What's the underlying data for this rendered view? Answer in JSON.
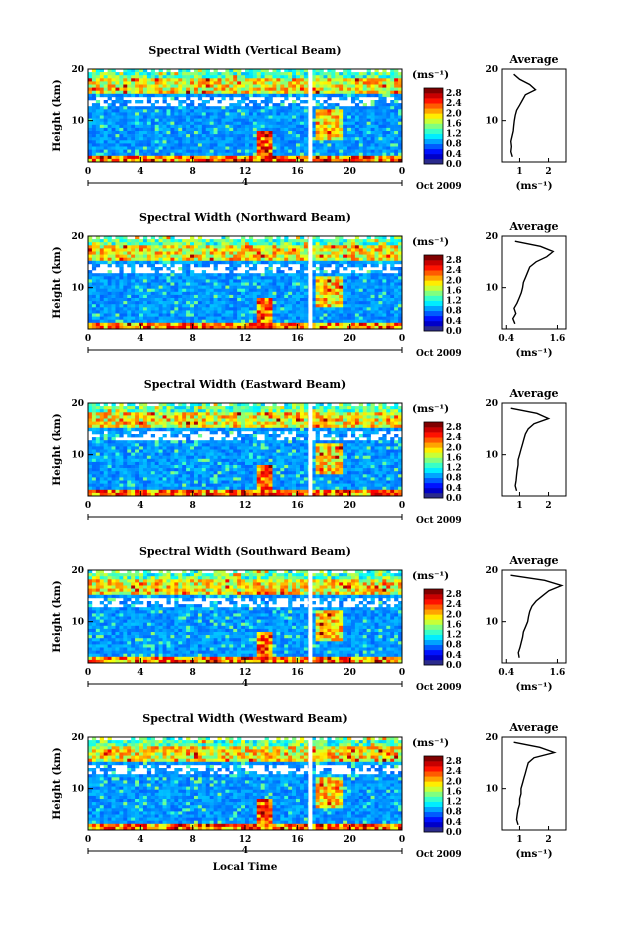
{
  "chart_data": [
    {
      "type": "heatmap",
      "title": "Spectral Width (Vertical Beam)",
      "ylabel": "Height (km)",
      "date_label": "Oct 2009",
      "x_ticks": [
        "0",
        "4",
        "8",
        "12",
        "16",
        "20",
        "0"
      ],
      "xlim": [
        0,
        24
      ],
      "y_ticks": [
        "10",
        "20"
      ],
      "ylim": [
        2,
        20
      ],
      "colorbar_unit": "(ms⁻¹)",
      "colorbar_ticks": [
        "0.0",
        "0.4",
        "0.8",
        "1.2",
        "1.6",
        "2.0",
        "2.4",
        "2.8"
      ],
      "colorbar_range": [
        0.0,
        3.0
      ],
      "secondary_axis_label": "4",
      "avg_panel": {
        "title": "Average",
        "xlabel": "(ms⁻¹)",
        "x_ticks": [
          "1",
          "2"
        ],
        "xlim": [
          0.4,
          2.6
        ],
        "y_ticks": [
          "10",
          "20"
        ],
        "heights": [
          3,
          4,
          5,
          6,
          7,
          8,
          9,
          10,
          11,
          12,
          13,
          14,
          15,
          16,
          17,
          18,
          19
        ],
        "values": [
          0.75,
          0.7,
          0.72,
          0.7,
          0.74,
          0.78,
          0.8,
          0.82,
          0.85,
          0.9,
          1.0,
          1.1,
          1.2,
          1.55,
          1.35,
          1.0,
          0.8
        ]
      }
    },
    {
      "type": "heatmap",
      "title": "Spectral Width (Northward Beam)",
      "ylabel": "Height (km)",
      "date_label": "Oct 2009",
      "x_ticks": [
        "0",
        "4",
        "8",
        "12",
        "16",
        "20",
        "0"
      ],
      "xlim": [
        0,
        24
      ],
      "y_ticks": [
        "10",
        "20"
      ],
      "ylim": [
        2,
        20
      ],
      "colorbar_unit": "(ms⁻¹)",
      "colorbar_ticks": [
        "0.0",
        "0.4",
        "0.8",
        "1.2",
        "1.6",
        "2.0",
        "2.4",
        "2.8"
      ],
      "colorbar_range": [
        0.0,
        3.0
      ],
      "secondary_axis_label": "",
      "avg_panel": {
        "title": "Average",
        "xlabel": "(ms⁻¹)",
        "x_ticks": [
          "0.4",
          "1.6"
        ],
        "xlim": [
          0.3,
          1.8
        ],
        "y_ticks": [
          "10",
          "20"
        ],
        "heights": [
          3,
          4,
          5,
          6,
          7,
          8,
          9,
          10,
          11,
          12,
          13,
          14,
          15,
          16,
          17,
          18,
          19
        ],
        "values": [
          0.6,
          0.55,
          0.62,
          0.58,
          0.65,
          0.7,
          0.75,
          0.78,
          0.8,
          0.85,
          0.9,
          0.95,
          1.1,
          1.35,
          1.5,
          1.2,
          0.6
        ]
      }
    },
    {
      "type": "heatmap",
      "title": "Spectral Width (Eastward Beam)",
      "ylabel": "Height (km)",
      "date_label": "Oct 2009",
      "x_ticks": [
        "0",
        "4",
        "8",
        "12",
        "16",
        "20",
        "0"
      ],
      "xlim": [
        0,
        24
      ],
      "y_ticks": [
        "10",
        "20"
      ],
      "ylim": [
        2,
        20
      ],
      "colorbar_unit": "(ms⁻¹)",
      "colorbar_ticks": [
        "0.0",
        "0.4",
        "0.8",
        "1.2",
        "1.6",
        "2.0",
        "2.4",
        "2.8"
      ],
      "colorbar_range": [
        0.0,
        3.0
      ],
      "secondary_axis_label": "",
      "avg_panel": {
        "title": "Average",
        "xlabel": "",
        "x_ticks": [
          "1",
          "2"
        ],
        "xlim": [
          0.4,
          2.6
        ],
        "y_ticks": [
          "10",
          "20"
        ],
        "heights": [
          3,
          4,
          5,
          6,
          7,
          8,
          9,
          10,
          11,
          12,
          13,
          14,
          15,
          16,
          17,
          18,
          19
        ],
        "values": [
          0.9,
          0.85,
          0.88,
          0.9,
          0.92,
          0.95,
          0.95,
          1.0,
          1.05,
          1.1,
          1.15,
          1.2,
          1.3,
          1.5,
          2.0,
          1.6,
          0.7
        ]
      }
    },
    {
      "type": "heatmap",
      "title": "Spectral Width (Southward Beam)",
      "ylabel": "Height (km)",
      "date_label": "Oct 2009",
      "x_ticks": [
        "0",
        "4",
        "8",
        "12",
        "16",
        "20",
        "0"
      ],
      "xlim": [
        0,
        24
      ],
      "y_ticks": [
        "10",
        "20"
      ],
      "ylim": [
        2,
        20
      ],
      "colorbar_unit": "(ms⁻¹)",
      "colorbar_ticks": [
        "0.0",
        "0.4",
        "0.8",
        "1.2",
        "1.6",
        "2.0",
        "2.4",
        "2.8"
      ],
      "colorbar_range": [
        0.0,
        3.0
      ],
      "secondary_axis_label": "4",
      "avg_panel": {
        "title": "Average",
        "xlabel": "(ms⁻¹)",
        "x_ticks": [
          "0.4",
          "1.6"
        ],
        "xlim": [
          0.3,
          1.8
        ],
        "y_ticks": [
          "10",
          "20"
        ],
        "heights": [
          3,
          4,
          5,
          6,
          7,
          8,
          9,
          10,
          11,
          12,
          13,
          14,
          15,
          16,
          17,
          18,
          19
        ],
        "values": [
          0.7,
          0.68,
          0.72,
          0.75,
          0.78,
          0.8,
          0.85,
          0.9,
          0.92,
          0.95,
          1.0,
          1.1,
          1.25,
          1.4,
          1.7,
          1.3,
          0.5
        ]
      }
    },
    {
      "type": "heatmap",
      "title": "Spectral Width (Westward Beam)",
      "ylabel": "Height (km)",
      "date_label": "Oct 2009",
      "x_ticks": [
        "0",
        "4",
        "8",
        "12",
        "16",
        "20",
        "0"
      ],
      "xlim": [
        0,
        24
      ],
      "y_ticks": [
        "10",
        "20"
      ],
      "ylim": [
        2,
        20
      ],
      "colorbar_unit": "(ms⁻¹)",
      "colorbar_ticks": [
        "0.0",
        "0.4",
        "0.8",
        "1.2",
        "1.6",
        "2.0",
        "2.4",
        "2.8"
      ],
      "colorbar_range": [
        0.0,
        3.0
      ],
      "secondary_axis_label": "4",
      "xlabel": "Local Time",
      "avg_panel": {
        "title": "Average",
        "xlabel": "(ms⁻¹)",
        "x_ticks": [
          "1",
          "2"
        ],
        "xlim": [
          0.4,
          2.6
        ],
        "y_ticks": [
          "10",
          "20"
        ],
        "heights": [
          3,
          4,
          5,
          6,
          7,
          8,
          9,
          10,
          11,
          12,
          13,
          14,
          15,
          16,
          17,
          18,
          19
        ],
        "values": [
          0.95,
          0.9,
          0.92,
          0.95,
          1.0,
          1.0,
          1.05,
          1.05,
          1.1,
          1.15,
          1.2,
          1.25,
          1.3,
          1.5,
          2.2,
          1.7,
          0.8
        ]
      }
    }
  ]
}
